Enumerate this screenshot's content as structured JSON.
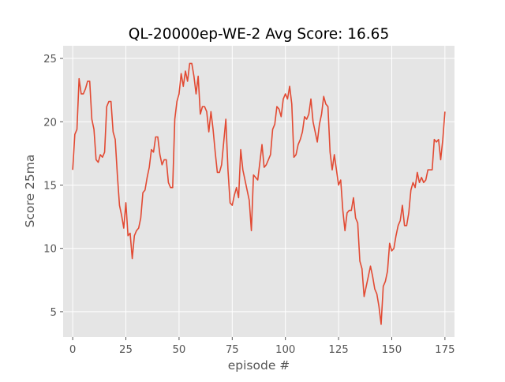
{
  "chart_data": {
    "type": "line",
    "title": "QL-20000ep-WE-2 Avg Score: 16.65",
    "xlabel": "episode #",
    "ylabel": "Score 25ma",
    "xlim": [
      -4.5,
      179.5
    ],
    "ylim": [
      3.0,
      26.0
    ],
    "xticks": [
      0,
      25,
      50,
      75,
      100,
      125,
      150,
      175
    ],
    "yticks": [
      5,
      10,
      15,
      20,
      25
    ],
    "grid": true,
    "style": "ggplot",
    "colors": {
      "background": "#e5e5e5",
      "grid": "#ffffff",
      "line": "#e24a33",
      "text": "#555555"
    },
    "series": [
      {
        "x": [
          0,
          1,
          2,
          3,
          4,
          5,
          6,
          7,
          8,
          9,
          10,
          11,
          12,
          13,
          14,
          15,
          16,
          17,
          18,
          19,
          20,
          21,
          22,
          23,
          24,
          25,
          26,
          27,
          28,
          29,
          30,
          31,
          32,
          33,
          34,
          35,
          36,
          37,
          38,
          39,
          40,
          41,
          42,
          43,
          44,
          45,
          46,
          47,
          48,
          49,
          50,
          51,
          52,
          53,
          54,
          55,
          56,
          57,
          58,
          59,
          60,
          61,
          62,
          63,
          64,
          65,
          66,
          67,
          68,
          69,
          70,
          71,
          72,
          73,
          74,
          75,
          76,
          77,
          78,
          79,
          80,
          81,
          82,
          83,
          84,
          85,
          86,
          87,
          88,
          89,
          90,
          91,
          92,
          93,
          94,
          95,
          96,
          97,
          98,
          99,
          100,
          101,
          102,
          103,
          104,
          105,
          106,
          107,
          108,
          109,
          110,
          111,
          112,
          113,
          114,
          115,
          116,
          117,
          118,
          119,
          120,
          121,
          122,
          123,
          124,
          125,
          126,
          127,
          128,
          129,
          130,
          131,
          132,
          133,
          134,
          135,
          136,
          137,
          138,
          139,
          140,
          141,
          142,
          143,
          144,
          145,
          146,
          147,
          148,
          149,
          150,
          151,
          152,
          153,
          154,
          155,
          156,
          157,
          158,
          159,
          160,
          161,
          162,
          163,
          164,
          165,
          166,
          167,
          168,
          169,
          170,
          171,
          172,
          173,
          174,
          175
        ],
        "values": [
          16.2,
          19.0,
          19.4,
          23.4,
          22.2,
          22.2,
          22.6,
          23.2,
          23.2,
          20.2,
          19.4,
          17.0,
          16.8,
          17.4,
          17.2,
          17.6,
          21.2,
          21.6,
          21.6,
          19.2,
          18.6,
          15.8,
          13.4,
          12.6,
          11.6,
          13.6,
          11.0,
          11.2,
          9.2,
          11.0,
          11.4,
          11.6,
          12.4,
          14.4,
          14.6,
          15.6,
          16.4,
          17.8,
          17.6,
          18.8,
          18.8,
          17.4,
          16.6,
          17.0,
          17.0,
          15.2,
          14.8,
          14.8,
          20.2,
          21.6,
          22.2,
          23.8,
          22.8,
          24.0,
          23.2,
          24.6,
          24.6,
          23.6,
          22.2,
          23.6,
          20.6,
          21.2,
          21.2,
          20.8,
          19.2,
          20.8,
          19.4,
          17.6,
          16.0,
          16.0,
          16.6,
          18.4,
          20.2,
          16.2,
          13.6,
          13.4,
          14.2,
          14.8,
          14.0,
          17.8,
          16.2,
          15.4,
          14.6,
          13.8,
          11.4,
          15.8,
          15.6,
          15.4,
          16.8,
          18.2,
          16.4,
          16.6,
          17.0,
          17.4,
          19.4,
          19.8,
          21.2,
          21.0,
          20.4,
          21.8,
          22.2,
          21.8,
          22.8,
          21.4,
          17.2,
          17.4,
          18.2,
          18.6,
          19.2,
          20.4,
          20.2,
          20.6,
          21.8,
          20.0,
          19.2,
          18.4,
          19.8,
          20.6,
          22.0,
          21.4,
          21.2,
          17.6,
          16.2,
          17.4,
          16.2,
          15.0,
          15.4,
          13.0,
          11.4,
          12.8,
          13.0,
          13.0,
          14.0,
          12.4,
          12.0,
          9.0,
          8.4,
          6.2,
          7.0,
          7.8,
          8.6,
          7.8,
          6.8,
          6.4,
          5.4,
          4.0,
          7.0,
          7.4,
          8.2,
          10.4,
          9.8,
          10.0,
          11.0,
          11.8,
          12.2,
          13.4,
          11.8,
          11.8,
          12.8,
          14.6,
          15.2,
          14.8,
          16.0,
          15.2,
          15.6,
          15.2,
          15.4,
          16.2,
          16.2,
          16.2,
          18.6,
          18.4,
          18.6,
          17.0,
          18.6,
          20.8
        ]
      }
    ]
  }
}
